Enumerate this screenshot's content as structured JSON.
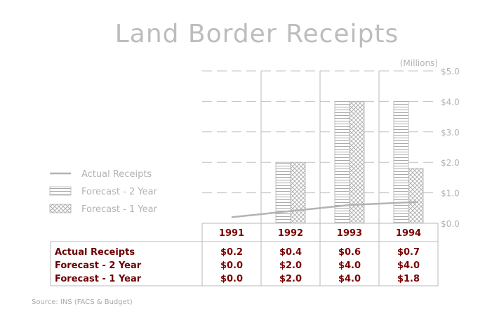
{
  "chart_data": {
    "type": "bar",
    "title": "Land Border Receipts",
    "unit_label": "(Millions)",
    "categories": [
      "1991",
      "1992",
      "1993",
      "1994"
    ],
    "ylim": [
      0,
      5
    ],
    "yticks": [
      {
        "value": 0,
        "label": "$0.0"
      },
      {
        "value": 1,
        "label": "$1.0"
      },
      {
        "value": 2,
        "label": "$2.0"
      },
      {
        "value": 3,
        "label": "$3.0"
      },
      {
        "value": 4,
        "label": "$4.0"
      },
      {
        "value": 5,
        "label": "$5.0"
      }
    ],
    "grid": true,
    "legend_position": "left",
    "series": [
      {
        "name": "Actual Receipts",
        "kind": "line",
        "color": "#b3b3b3",
        "values": [
          0.2,
          0.4,
          0.6,
          0.7
        ],
        "display": [
          "$0.2",
          "$0.4",
          "$0.6",
          "$0.7"
        ]
      },
      {
        "name": "Forecast - 2 Year",
        "kind": "bar",
        "pattern": "horizontal-lines",
        "color": "#aaaaaa",
        "values": [
          0.0,
          2.0,
          4.0,
          4.0
        ],
        "display": [
          "$0.0",
          "$2.0",
          "$4.0",
          "$4.0"
        ]
      },
      {
        "name": "Forecast - 1 Year",
        "kind": "bar",
        "pattern": "crosshatch",
        "color": "#aaaaaa",
        "values": [
          0.0,
          2.0,
          4.0,
          1.8
        ],
        "display": [
          "$0.0",
          "$2.0",
          "$4.0",
          "$1.8"
        ]
      }
    ],
    "source": "Source: INS (FACS & Budget)"
  },
  "colors": {
    "title": "#bdbdbd",
    "axis_text": "#b3b3b3",
    "table_label": "#6b0000",
    "table_value": "#7a0000",
    "header_text": "#7a0000",
    "rule": "#b8b8b8",
    "grid": "#c0c0c0",
    "source": "#a8a8a8"
  }
}
